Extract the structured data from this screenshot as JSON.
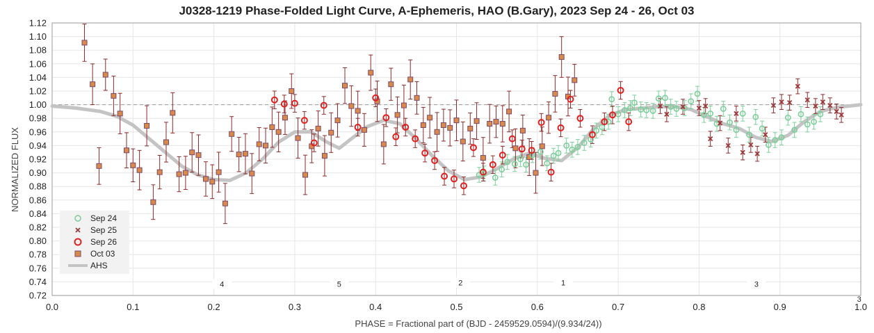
{
  "chart_data": {
    "type": "scatter",
    "title": "J0328-1219 Phase-Folded Light Curve, A-Ephemeris, HAO (B.Gary), 2023 Sep 24 - 26, Oct 03",
    "xlabel": "PHASE = Fractional part of (BJD - 2459529.0594)/(9.934/24))",
    "ylabel": "NORMALIZED FLUX",
    "xlim": [
      0.0,
      1.0
    ],
    "ylim": [
      0.72,
      1.12
    ],
    "xticks": [
      "0.0",
      "0.1",
      "0.2",
      "0.3",
      "0.4",
      "0.5",
      "0.6",
      "0.7",
      "0.8",
      "0.9",
      "1.0"
    ],
    "xtick_values": [
      0.0,
      0.1,
      0.2,
      0.3,
      0.4,
      0.5,
      0.6,
      0.7,
      0.8,
      0.9,
      1.0
    ],
    "yticks": [
      "0.72",
      "0.74",
      "0.76",
      "0.78",
      "0.80",
      "0.82",
      "0.84",
      "0.86",
      "0.88",
      "0.90",
      "0.92",
      "0.94",
      "0.96",
      "0.98",
      "1.00",
      "1.02",
      "1.04",
      "1.06",
      "1.08",
      "1.10",
      "1.12"
    ],
    "ytick_values": [
      0.72,
      0.74,
      0.76,
      0.78,
      0.8,
      0.82,
      0.84,
      0.86,
      0.88,
      0.9,
      0.92,
      0.94,
      0.96,
      0.98,
      1.0,
      1.02,
      1.04,
      1.06,
      1.08,
      1.1,
      1.12
    ],
    "reference_line": 1.0,
    "legend_position": "bottom-left",
    "colors": {
      "sep24": "#7ccf9a",
      "sep25": "#9b3a3a",
      "sep26": "#e02020",
      "oct03_fill": "#d98a4a",
      "oct03_edge": "#7a4a6a",
      "errbar": "#8b2a2a",
      "ahs": "#c4c4c4"
    },
    "annotations": [
      {
        "text": "4",
        "x": 0.21,
        "y": 0.735
      },
      {
        "text": "5",
        "x": 0.355,
        "y": 0.735
      },
      {
        "text": "2",
        "x": 0.505,
        "y": 0.737
      },
      {
        "text": "1",
        "x": 0.632,
        "y": 0.737
      },
      {
        "text": "3",
        "x": 0.871,
        "y": 0.735
      },
      {
        "text": "3",
        "x": 0.998,
        "y": 0.713
      }
    ],
    "series": [
      {
        "name": "Sep 24",
        "marker": "circle-open",
        "points": [
          [
            0.528,
            0.897
          ],
          [
            0.534,
            0.899
          ],
          [
            0.548,
            0.893
          ],
          [
            0.556,
            0.905
          ],
          [
            0.563,
            0.916
          ],
          [
            0.572,
            0.913
          ],
          [
            0.579,
            0.92
          ],
          [
            0.586,
            0.912
          ],
          [
            0.594,
            0.926
          ],
          [
            0.604,
            0.931
          ],
          [
            0.612,
            0.914
          ],
          [
            0.62,
            0.925
          ],
          [
            0.626,
            0.929
          ],
          [
            0.636,
            0.94
          ],
          [
            0.643,
            0.934
          ],
          [
            0.65,
            0.938
          ],
          [
            0.658,
            0.944
          ],
          [
            0.666,
            0.949
          ],
          [
            0.673,
            0.962
          ],
          [
            0.68,
            0.967
          ],
          [
            0.688,
            0.975
          ],
          [
            0.692,
            1.008
          ],
          [
            0.7,
            0.986
          ],
          [
            0.708,
            0.992
          ],
          [
            0.715,
            0.995
          ],
          [
            0.72,
            1.003
          ],
          [
            0.728,
            0.993
          ],
          [
            0.735,
            0.992
          ],
          [
            0.743,
            0.991
          ],
          [
            0.75,
            1.009
          ],
          [
            0.758,
            1.01
          ],
          [
            0.765,
            0.997
          ],
          [
            0.772,
            0.994
          ],
          [
            0.782,
            0.995
          ],
          [
            0.79,
            1.005
          ],
          [
            0.798,
            1.016
          ],
          [
            0.806,
            0.985
          ],
          [
            0.814,
            0.987
          ],
          [
            0.822,
            0.972
          ],
          [
            0.83,
            0.994
          ],
          [
            0.838,
            0.974
          ],
          [
            0.846,
            0.963
          ],
          [
            0.854,
            0.987
          ],
          [
            0.862,
            0.956
          ],
          [
            0.87,
            0.982
          ],
          [
            0.878,
            0.965
          ],
          [
            0.886,
            0.941
          ],
          [
            0.894,
            0.948
          ],
          [
            0.902,
            0.952
          ],
          [
            0.91,
            0.981
          ],
          [
            0.918,
            0.963
          ],
          [
            0.926,
            0.986
          ],
          [
            0.934,
            0.971
          ],
          [
            0.942,
            0.975
          ],
          [
            0.95,
            0.986
          ]
        ]
      },
      {
        "name": "Sep 25",
        "marker": "x",
        "points": [
          [
            0.752,
            0.998
          ],
          [
            0.76,
            0.986
          ],
          [
            0.78,
            0.997
          ],
          [
            0.8,
            0.995
          ],
          [
            0.808,
            0.998
          ],
          [
            0.814,
            0.95
          ],
          [
            0.826,
            0.973
          ],
          [
            0.836,
            0.94
          ],
          [
            0.846,
            0.987
          ],
          [
            0.854,
            0.93
          ],
          [
            0.864,
            0.941
          ],
          [
            0.872,
            0.928
          ],
          [
            0.882,
            0.956
          ],
          [
            0.892,
            0.999
          ],
          [
            0.902,
            1.004
          ],
          [
            0.912,
            1.003
          ],
          [
            0.922,
            1.027
          ],
          [
            0.934,
            1.007
          ],
          [
            0.944,
            0.998
          ],
          [
            0.953,
            1.004
          ],
          [
            0.962,
            0.999
          ],
          [
            0.97,
            0.99
          ],
          [
            0.976,
            0.985
          ]
        ]
      },
      {
        "name": "Sep 26",
        "marker": "circle-open",
        "points": [
          [
            0.275,
            1.007
          ],
          [
            0.287,
            1.001
          ],
          [
            0.3,
            1.002
          ],
          [
            0.312,
            0.977
          ],
          [
            0.324,
            0.944
          ],
          [
            0.336,
            0.999
          ],
          [
            0.378,
            0.967
          ],
          [
            0.4,
            1.01
          ],
          [
            0.413,
            0.981
          ],
          [
            0.425,
            0.953
          ],
          [
            0.437,
            0.967
          ],
          [
            0.449,
            0.95
          ],
          [
            0.461,
            0.929
          ],
          [
            0.473,
            0.918
          ],
          [
            0.485,
            0.895
          ],
          [
            0.497,
            0.891
          ],
          [
            0.509,
            0.881
          ],
          [
            0.521,
            0.937
          ],
          [
            0.533,
            0.901
          ],
          [
            0.545,
            0.912
          ],
          [
            0.557,
            0.926
          ],
          [
            0.569,
            0.95
          ],
          [
            0.581,
            0.935
          ],
          [
            0.593,
            0.933
          ],
          [
            0.605,
            0.974
          ],
          [
            0.617,
            0.901
          ],
          [
            0.629,
            0.966
          ],
          [
            0.641,
            1.008
          ],
          [
            0.653,
            0.98
          ],
          [
            0.668,
            0.956
          ],
          [
            0.683,
            0.975
          ],
          [
            0.693,
            0.985
          ],
          [
            0.703,
            1.021
          ],
          [
            0.713,
            0.975
          ]
        ]
      },
      {
        "name": "Oct 03",
        "marker": "square",
        "points": [
          [
            0.04,
            1.091
          ],
          [
            0.05,
            1.03
          ],
          [
            0.058,
            0.91
          ],
          [
            0.066,
            1.044
          ],
          [
            0.076,
            1.013
          ],
          [
            0.084,
            0.987
          ],
          [
            0.092,
            0.933
          ],
          [
            0.1,
            0.911
          ],
          [
            0.108,
            0.904
          ],
          [
            0.117,
            0.969
          ],
          [
            0.125,
            0.857
          ],
          [
            0.133,
            0.901
          ],
          [
            0.141,
            0.945
          ],
          [
            0.149,
            0.988
          ],
          [
            0.157,
            0.898
          ],
          [
            0.165,
            0.9
          ],
          [
            0.173,
            0.93
          ],
          [
            0.181,
            0.926
          ],
          [
            0.19,
            0.891
          ],
          [
            0.198,
            0.887
          ],
          [
            0.206,
            0.901
          ],
          [
            0.214,
            0.855
          ],
          [
            0.222,
            0.957
          ],
          [
            0.231,
            0.927
          ],
          [
            0.239,
            0.928
          ],
          [
            0.247,
            0.899
          ],
          [
            0.256,
            0.942
          ],
          [
            0.264,
            0.94
          ],
          [
            0.272,
            0.967
          ],
          [
            0.28,
            0.96
          ],
          [
            0.288,
            0.981
          ],
          [
            0.296,
            1.02
          ],
          [
            0.304,
            0.951
          ],
          [
            0.313,
            0.897
          ],
          [
            0.321,
            0.939
          ],
          [
            0.329,
            0.965
          ],
          [
            0.337,
            0.925
          ],
          [
            0.345,
            0.959
          ],
          [
            0.353,
            0.977
          ],
          [
            0.362,
            1.028
          ],
          [
            0.37,
            0.998
          ],
          [
            0.378,
            0.991
          ],
          [
            0.386,
            0.963
          ],
          [
            0.394,
            1.047
          ],
          [
            0.402,
            1.005
          ],
          [
            0.41,
            0.942
          ],
          [
            0.419,
            1.03
          ],
          [
            0.427,
            0.985
          ],
          [
            0.435,
            0.999
          ],
          [
            0.443,
            1.037
          ],
          [
            0.451,
            1.01
          ],
          [
            0.459,
            0.97
          ],
          [
            0.467,
            0.981
          ],
          [
            0.476,
            0.96
          ],
          [
            0.484,
            0.97
          ],
          [
            0.492,
            0.966
          ],
          [
            0.5,
            0.977
          ],
          [
            0.508,
            0.946
          ],
          [
            0.517,
            0.965
          ],
          [
            0.525,
            0.976
          ],
          [
            0.533,
            0.922
          ],
          [
            0.541,
            0.972
          ],
          [
            0.549,
            0.975
          ],
          [
            0.557,
            0.972
          ],
          [
            0.565,
            0.99
          ],
          [
            0.573,
            0.936
          ],
          [
            0.582,
            0.962
          ],
          [
            0.59,
            0.923
          ],
          [
            0.598,
            0.9
          ],
          [
            0.606,
            0.939
          ],
          [
            0.614,
            0.981
          ],
          [
            0.622,
            1.016
          ],
          [
            0.63,
            1.07
          ],
          [
            0.638,
            1.012
          ],
          [
            0.646,
            1.036
          ]
        ]
      },
      {
        "name": "AHS",
        "marker": "line",
        "points": [
          [
            0.0,
            0.998
          ],
          [
            0.03,
            0.995
          ],
          [
            0.06,
            0.99
          ],
          [
            0.08,
            0.983
          ],
          [
            0.1,
            0.97
          ],
          [
            0.12,
            0.95
          ],
          [
            0.14,
            0.93
          ],
          [
            0.16,
            0.91
          ],
          [
            0.18,
            0.897
          ],
          [
            0.2,
            0.89
          ],
          [
            0.22,
            0.889
          ],
          [
            0.24,
            0.9
          ],
          [
            0.26,
            0.92
          ],
          [
            0.28,
            0.945
          ],
          [
            0.3,
            0.96
          ],
          [
            0.32,
            0.96
          ],
          [
            0.34,
            0.945
          ],
          [
            0.355,
            0.936
          ],
          [
            0.37,
            0.95
          ],
          [
            0.39,
            0.968
          ],
          [
            0.41,
            0.977
          ],
          [
            0.43,
            0.972
          ],
          [
            0.45,
            0.95
          ],
          [
            0.47,
            0.925
          ],
          [
            0.49,
            0.903
          ],
          [
            0.51,
            0.89
          ],
          [
            0.53,
            0.894
          ],
          [
            0.55,
            0.906
          ],
          [
            0.57,
            0.92
          ],
          [
            0.59,
            0.929
          ],
          [
            0.61,
            0.921
          ],
          [
            0.63,
            0.918
          ],
          [
            0.65,
            0.937
          ],
          [
            0.67,
            0.965
          ],
          [
            0.69,
            0.985
          ],
          [
            0.71,
            0.993
          ],
          [
            0.73,
            0.995
          ],
          [
            0.75,
            0.997
          ],
          [
            0.77,
            0.997
          ],
          [
            0.79,
            0.993
          ],
          [
            0.81,
            0.982
          ],
          [
            0.83,
            0.972
          ],
          [
            0.85,
            0.965
          ],
          [
            0.87,
            0.952
          ],
          [
            0.89,
            0.946
          ],
          [
            0.91,
            0.955
          ],
          [
            0.93,
            0.975
          ],
          [
            0.95,
            0.99
          ],
          [
            0.97,
            0.996
          ],
          [
            1.0,
            1.0
          ]
        ]
      }
    ]
  }
}
